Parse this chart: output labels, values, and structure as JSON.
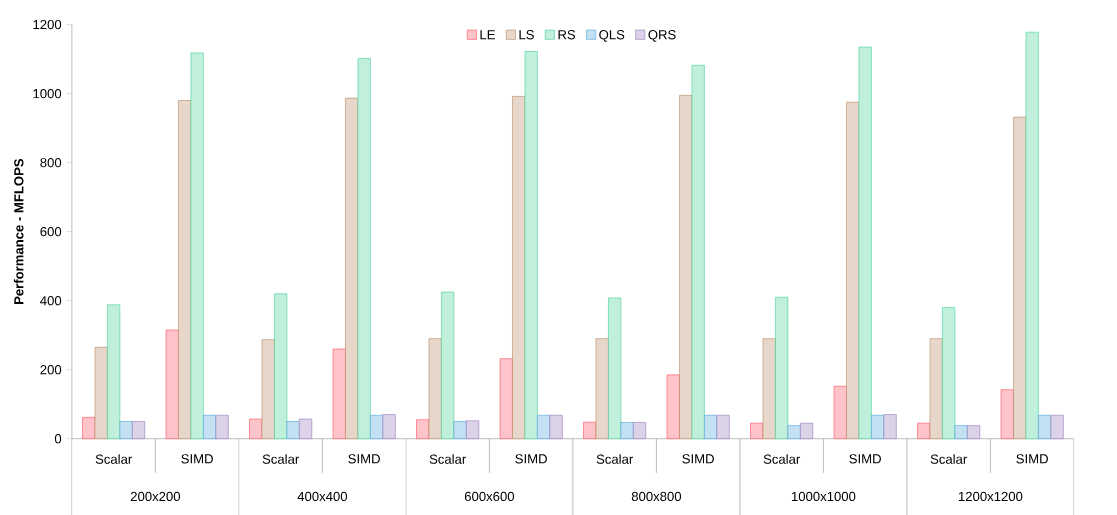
{
  "chart_data": {
    "type": "bar",
    "ylabel": "Performance - MFLOPS",
    "categories": [
      "Scalar",
      "SIMD",
      "Scalar",
      "SIMD",
      "Scalar",
      "SIMD",
      "Scalar",
      "SIMD",
      "Scalar",
      "SIMD",
      "Scalar",
      "SIMD"
    ],
    "annotations": [
      "200x200",
      "400x400",
      "600x600",
      "800x800",
      "1000x1000",
      "1200x1200"
    ],
    "series": [
      {
        "name": "LE",
        "color": "#ff3b4f",
        "values": [
          62,
          315,
          57,
          260,
          55,
          232,
          48,
          185,
          45,
          152,
          45,
          142
        ]
      },
      {
        "name": "LS",
        "color": "#b07a50",
        "values": [
          265,
          980,
          287,
          987,
          290,
          992,
          290,
          995,
          290,
          975,
          290,
          932
        ]
      },
      {
        "name": "RS",
        "color": "#2ecc8a",
        "values": [
          388,
          1118,
          420,
          1102,
          425,
          1122,
          408,
          1082,
          410,
          1135,
          380,
          1178
        ]
      },
      {
        "name": "QLS",
        "color": "#3a9ad9",
        "values": [
          50,
          68,
          50,
          68,
          50,
          68,
          47,
          68,
          38,
          68,
          38,
          68
        ]
      },
      {
        "name": "QRS",
        "color": "#8a6cb5",
        "values": [
          50,
          68,
          57,
          70,
          52,
          68,
          47,
          68,
          45,
          70,
          38,
          68
        ]
      }
    ],
    "ylim": [
      0,
      1200
    ],
    "yticks": [
      0,
      200,
      400,
      600,
      800,
      1000,
      1200
    ],
    "grid": false,
    "legend": "top"
  }
}
